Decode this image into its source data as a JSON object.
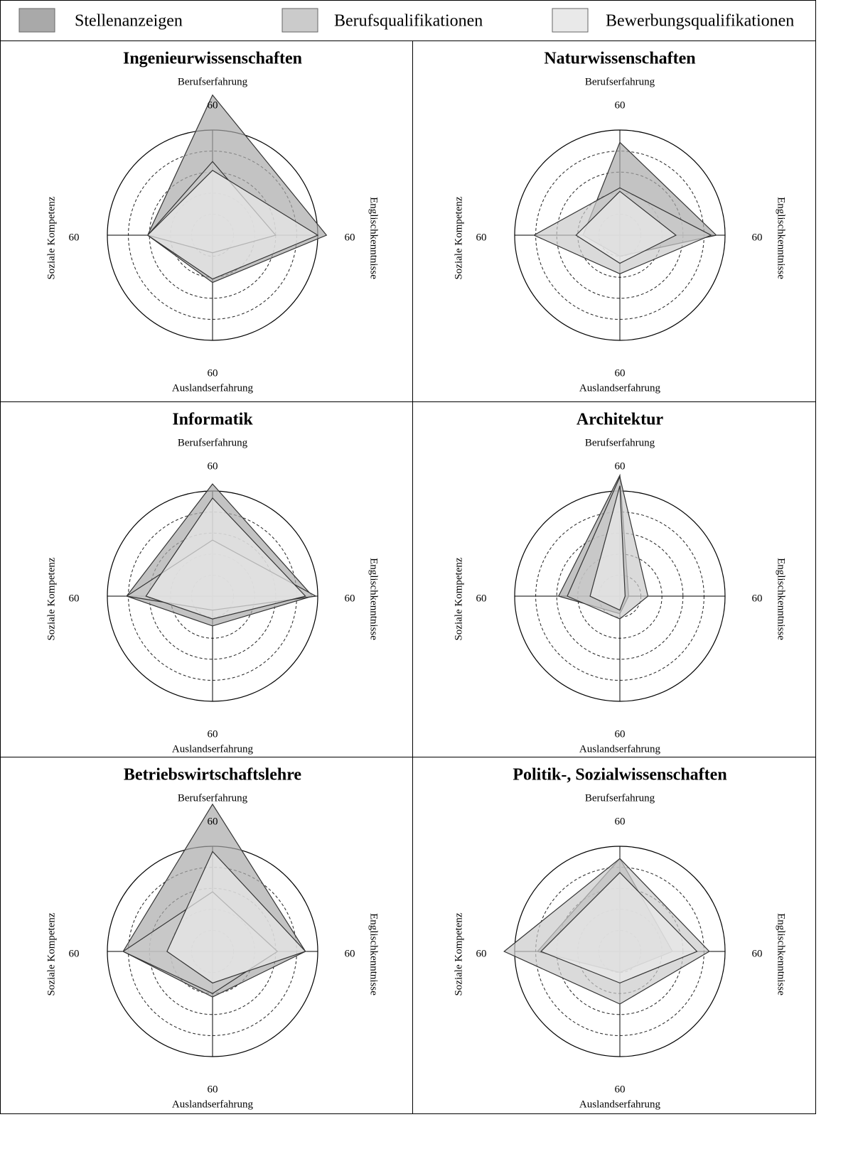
{
  "chart_data": [
    {
      "type": "radar",
      "title": "Ingenieurwissenschaften",
      "categories": [
        "Berufserfahrung",
        "Englischkenntnisse",
        "Auslandserfahrung",
        "Soziale Kompetenz"
      ],
      "series": [
        {
          "name": "Stellenanzeigen",
          "color": "#a9a9a9",
          "values": [
            80,
            65,
            27,
            37
          ]
        },
        {
          "name": "Berufsqualifikationen",
          "color": "#cbcbcb",
          "values": [
            42,
            36,
            10,
            37
          ]
        },
        {
          "name": "Bewerbungsqualifikationen",
          "color": "#e9e9e9",
          "values": [
            37,
            60,
            25,
            37
          ]
        }
      ],
      "rlim": [
        0,
        60
      ],
      "rticks": [
        60
      ],
      "grid_rings": [
        12,
        24,
        36,
        48
      ]
    },
    {
      "type": "radar",
      "title": "Naturwissenschaften",
      "categories": [
        "Berufserfahrung",
        "Englischkenntnisse",
        "Auslandserfahrung",
        "Soziale Kompetenz"
      ],
      "series": [
        {
          "name": "Stellenanzeigen",
          "color": "#a9a9a9",
          "values": [
            53,
            55,
            12,
            21
          ]
        },
        {
          "name": "Berufsqualifikationen",
          "color": "#cbcbcb",
          "values": [
            27,
            52,
            22,
            49
          ]
        },
        {
          "name": "Bewerbungsqualifikationen",
          "color": "#e9e9e9",
          "values": [
            25,
            32,
            16,
            25
          ]
        }
      ],
      "rlim": [
        0,
        60
      ],
      "rticks": [
        60
      ],
      "grid_rings": [
        12,
        24,
        36,
        48
      ]
    },
    {
      "type": "radar",
      "title": "Informatik",
      "categories": [
        "Berufserfahrung",
        "Englischkenntnisse",
        "Auslandserfahrung",
        "Soziale Kompetenz"
      ],
      "series": [
        {
          "name": "Stellenanzeigen",
          "color": "#a9a9a9",
          "values": [
            64,
            57,
            17,
            49
          ]
        },
        {
          "name": "Berufsqualifikationen",
          "color": "#cbcbcb",
          "values": [
            32,
            59,
            8,
            49
          ]
        },
        {
          "name": "Bewerbungsqualifikationen",
          "color": "#e9e9e9",
          "values": [
            56,
            53,
            13,
            38
          ]
        }
      ],
      "rlim": [
        0,
        60
      ],
      "rticks": [
        60
      ],
      "grid_rings": [
        12,
        24,
        36,
        48
      ]
    },
    {
      "type": "radar",
      "title": "Architektur",
      "categories": [
        "Berufserfahrung",
        "Englischkenntnisse",
        "Auslandserfahrung",
        "Soziale Kompetenz"
      ],
      "series": [
        {
          "name": "Stellenanzeigen",
          "color": "#a9a9a9",
          "values": [
            69,
            5,
            10,
            35
          ]
        },
        {
          "name": "Berufsqualifikationen",
          "color": "#cbcbcb",
          "values": [
            68,
            16,
            13,
            30
          ]
        },
        {
          "name": "Bewerbungsqualifikationen",
          "color": "#e9e9e9",
          "values": [
            63,
            3,
            8,
            17
          ]
        }
      ],
      "rlim": [
        0,
        60
      ],
      "rticks": [
        60
      ],
      "grid_rings": [
        12,
        24,
        36,
        48
      ]
    },
    {
      "type": "radar",
      "title": "Betriebswirtschaftslehre",
      "categories": [
        "Berufserfahrung",
        "Englischkenntnisse",
        "Auslandserfahrung",
        "Soziale Kompetenz"
      ],
      "series": [
        {
          "name": "Stellenanzeigen",
          "color": "#a9a9a9",
          "values": [
            84,
            53,
            26,
            51
          ]
        },
        {
          "name": "Berufsqualifikationen",
          "color": "#cbcbcb",
          "values": [
            34,
            37,
            24,
            51
          ]
        },
        {
          "name": "Bewerbungsqualifikationen",
          "color": "#e9e9e9",
          "values": [
            57,
            53,
            18,
            26
          ]
        }
      ],
      "rlim": [
        0,
        60
      ],
      "rticks": [
        60
      ],
      "grid_rings": [
        12,
        24,
        36,
        48
      ]
    },
    {
      "type": "radar",
      "title": "Politik-, Sozialwissenschaften",
      "categories": [
        "Berufserfahrung",
        "Englischkenntnisse",
        "Auslandserfahrung",
        "Soziale Kompetenz"
      ],
      "series": [
        {
          "name": "Stellenanzeigen",
          "color": "#a9a9a9",
          "values": [
            53,
            30,
            12,
            47
          ]
        },
        {
          "name": "Berufsqualifikationen",
          "color": "#cbcbcb",
          "values": [
            53,
            51,
            30,
            66
          ]
        },
        {
          "name": "Bewerbungsqualifikationen",
          "color": "#e9e9e9",
          "values": [
            45,
            44,
            18,
            45
          ]
        }
      ],
      "rlim": [
        0,
        60
      ],
      "rticks": [
        60
      ],
      "grid_rings": [
        12,
        24,
        36,
        48
      ]
    }
  ]
}
